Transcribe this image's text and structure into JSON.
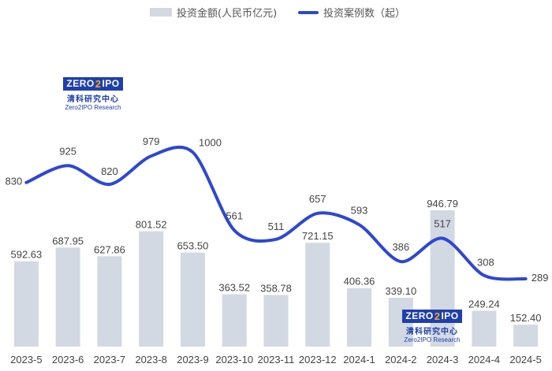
{
  "legend": {
    "bar_label": "投资金额(人民币亿元)",
    "line_label": "投资案例数（起）"
  },
  "watermark": {
    "logo_left": "ZERO",
    "logo_mid": "2",
    "logo_right": "IPO",
    "name_cn": "清科研究中心",
    "name_en": "Zero2IPO Research"
  },
  "colors": {
    "bar": "#d3d9e3",
    "line": "#2d47d6",
    "label": "#444444"
  },
  "chart_data": {
    "type": "bar",
    "categories": [
      "2023-5",
      "2023-6",
      "2023-7",
      "2023-8",
      "2023-9",
      "2023-10",
      "2023-11",
      "2023-12",
      "2024-1",
      "2024-2",
      "2024-3",
      "2024-4",
      "2024-5"
    ],
    "series": [
      {
        "name": "投资金额(人民币亿元)",
        "type": "bar",
        "values": [
          592.63,
          687.95,
          627.86,
          801.52,
          653.5,
          363.52,
          358.78,
          721.15,
          406.36,
          339.1,
          946.79,
          249.24,
          152.4
        ],
        "labels": [
          "592.63",
          "687.95",
          "627.86",
          "801.52",
          "653.50",
          "363.52",
          "358.78",
          "721.15",
          "406.36",
          "339.10",
          "946.79",
          "249.24",
          "152.40"
        ]
      },
      {
        "name": "投资案例数（起）",
        "type": "line",
        "smooth": true,
        "values": [
          830,
          925,
          820,
          979,
          1000,
          561,
          511,
          657,
          593,
          386,
          517,
          308,
          289
        ],
        "labels": [
          "830",
          "925",
          "820",
          "979",
          "1000",
          "561",
          "511",
          "657",
          "593",
          "386",
          "517",
          "308",
          "289"
        ]
      }
    ],
    "legend_position": "top-center",
    "grid": false
  }
}
